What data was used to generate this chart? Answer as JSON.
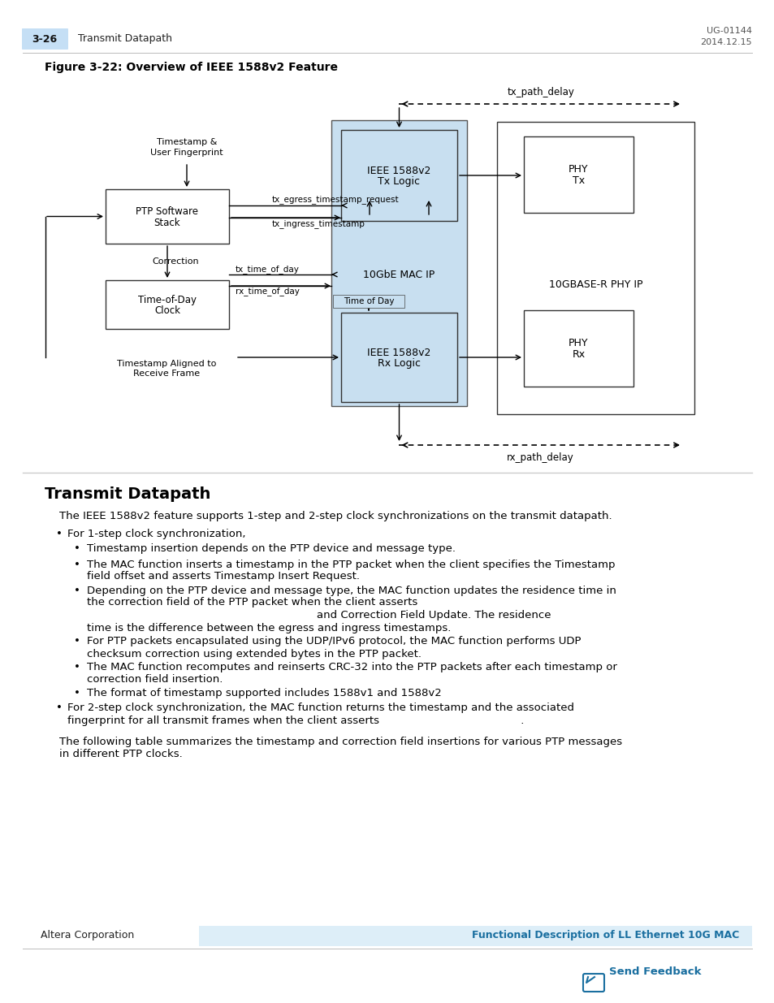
{
  "page_title": "Transmit Datapath",
  "page_num": "3-26",
  "doc_id": "UG-01144",
  "doc_date": "2014.12.15",
  "figure_title": "Figure 3-22: Overview of IEEE 1588v2 Feature",
  "section_title": "Transmit Datapath",
  "para1": "The IEEE 1588v2 feature supports 1-step and 2-step clock synchronizations on the transmit datapath.",
  "bullet1": "For 1-step clock synchronization,",
  "sub_bullet1": "Timestamp insertion depends on the PTP device and message type.",
  "sub_bullet2_a": "The MAC function inserts a timestamp in the PTP packet when the client specifies the Timestamp",
  "sub_bullet2_b": "field offset and asserts Timestamp Insert Request.",
  "sub_bullet3_a": "Depending on the PTP device and message type, the MAC function updates the residence time in",
  "sub_bullet3_b": "the correction field of the PTP packet when the client asserts",
  "sub_bullet3_c": "and Correction Field Update. The residence",
  "sub_bullet3_d": "time is the difference between the egress and ingress timestamps.",
  "sub_bullet4_a": "For PTP packets encapsulated using the UDP/IPv6 protocol, the MAC function performs UDP",
  "sub_bullet4_b": "checksum correction using extended bytes in the PTP packet.",
  "sub_bullet5_a": "The MAC function recomputes and reinserts CRC-32 into the PTP packets after each timestamp or",
  "sub_bullet5_b": "correction field insertion.",
  "sub_bullet6": "The format of timestamp supported includes 1588v1 and 1588v2",
  "bullet2_a": "For 2-step clock synchronization, the MAC function returns the timestamp and the associated",
  "bullet2_b": "fingerprint for all transmit frames when the client asserts                                         .",
  "para2_a": "The following table summarizes the timestamp and correction field insertions for various PTP messages",
  "para2_b": "in different PTP clocks.",
  "footer_left": "Altera Corporation",
  "footer_right": "Functional Description of LL Ethernet 10G MAC",
  "footer_feedback": "Send Feedback",
  "bg_color": "#ffffff",
  "header_tab_color": "#c5dff5",
  "diagram_shade_color": "#c8dff0",
  "separator_color": "#cccccc",
  "footer_bar_color": "#ddeef8",
  "link_color": "#1a6fa0"
}
